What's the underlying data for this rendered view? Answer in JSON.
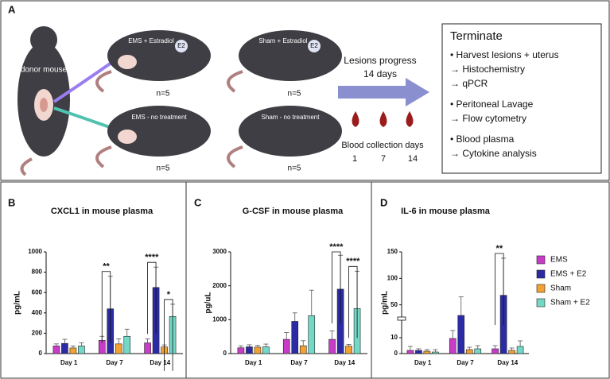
{
  "panel_a": {
    "letter": "A",
    "donor": "donor mouse",
    "groups": [
      {
        "label": "EMS + Estradiol",
        "badge": "E2",
        "n": "n=5"
      },
      {
        "label": "Sham + Estradiol",
        "badge": "E2",
        "n": "n=5"
      },
      {
        "label": "EMS - no treatment",
        "n": "n=5"
      },
      {
        "label": "Sham - no treatment",
        "n": "n=5"
      }
    ],
    "progress": [
      "Lesions progress",
      "14 days"
    ],
    "blood": {
      "label": "Blood collection days",
      "days": [
        "1",
        "7",
        "14"
      ]
    },
    "terminate": {
      "title": "Terminate",
      "lines": [
        "• Harvest lesions + uterus",
        "→ Histochemistry",
        "→ qPCR",
        "• Peritoneal Lavage",
        "→ Flow cytometry",
        "• Blood plasma",
        "→ Cytokine analysis"
      ]
    }
  },
  "chart_data": [
    {
      "type": "bar",
      "letter": "B",
      "title": "CXCL1 in mouse plasma",
      "ylabel": "pg/mL",
      "categories": [
        "Day 1",
        "Day 7",
        "Day 14"
      ],
      "series": [
        {
          "name": "EMS",
          "color": "#c83cc8",
          "values": [
            75,
            130,
            105
          ],
          "errors": [
            20,
            40,
            40
          ]
        },
        {
          "name": "EMS + E2",
          "color": "#2b2ba6",
          "values": [
            100,
            440,
            650
          ],
          "errors": [
            40,
            320,
            200
          ]
        },
        {
          "name": "Sham",
          "color": "#f2a233",
          "values": [
            55,
            95,
            65
          ],
          "errors": [
            20,
            50,
            20
          ]
        },
        {
          "name": "Sham + E2",
          "color": "#74d8c6",
          "values": [
            75,
            170,
            365
          ],
          "errors": [
            30,
            70,
            120
          ]
        }
      ],
      "ylim": [
        0,
        1000
      ],
      "yticks": [
        0,
        200,
        400,
        600,
        800,
        1000
      ],
      "annotations": [
        {
          "text": "**",
          "category": 1,
          "pair": [
            0,
            1
          ]
        },
        {
          "text": "****",
          "category": 2,
          "pair": [
            0,
            1
          ]
        },
        {
          "text": "*",
          "category": 2,
          "pair": [
            2,
            3
          ]
        }
      ]
    },
    {
      "type": "bar",
      "letter": "C",
      "title": "G-CSF in mouse plasma",
      "ylabel": "pg/uL",
      "categories": [
        "Day 1",
        "Day 7",
        "Day 14"
      ],
      "series": [
        {
          "name": "EMS",
          "color": "#c83cc8",
          "values": [
            170,
            420,
            420
          ],
          "errors": [
            60,
            200,
            250
          ]
        },
        {
          "name": "EMS + E2",
          "color": "#2b2ba6",
          "values": [
            200,
            950,
            1900
          ],
          "errors": [
            60,
            250,
            1000
          ]
        },
        {
          "name": "Sham",
          "color": "#f2a233",
          "values": [
            190,
            230,
            220
          ],
          "errors": [
            50,
            150,
            50
          ]
        },
        {
          "name": "Sham + E2",
          "color": "#74d8c6",
          "values": [
            200,
            1120,
            1330
          ],
          "errors": [
            80,
            750,
            1100
          ]
        }
      ],
      "ylim": [
        0,
        3000
      ],
      "yticks": [
        0,
        1000,
        2000,
        3000
      ],
      "annotations": [
        {
          "text": "****",
          "category": 2,
          "pair": [
            0,
            1
          ]
        },
        {
          "text": "****",
          "category": 2,
          "pair": [
            2,
            3
          ]
        }
      ]
    },
    {
      "type": "bar",
      "letter": "D",
      "title": "IL-6 in mouse plasma",
      "ylabel": "pg/mL",
      "categories": [
        "Day 1",
        "Day 7",
        "Day 14"
      ],
      "series": [
        {
          "name": "EMS",
          "color": "#c83cc8",
          "values": [
            2,
            9.5,
            3
          ],
          "errors": [
            2.5,
            5,
            2
          ]
        },
        {
          "name": "EMS + E2",
          "color": "#2b2ba6",
          "values": [
            2,
            30,
            68
          ],
          "errors": [
            1,
            35,
            70
          ]
        },
        {
          "name": "Sham",
          "color": "#f2a233",
          "values": [
            1.5,
            2.5,
            2
          ],
          "errors": [
            1,
            1.5,
            1.5
          ]
        },
        {
          "name": "Sham + E2",
          "color": "#74d8c6",
          "values": [
            1,
            3,
            4.5
          ],
          "errors": [
            1.5,
            2,
            3.5
          ]
        }
      ],
      "ylim": [
        0,
        150
      ],
      "ybreak": [
        20,
        30
      ],
      "yticks": [
        0,
        10,
        50,
        100,
        150
      ],
      "legend": "right",
      "annotations": [
        {
          "text": "**",
          "category": 2,
          "pair": [
            0,
            1
          ]
        }
      ]
    }
  ]
}
